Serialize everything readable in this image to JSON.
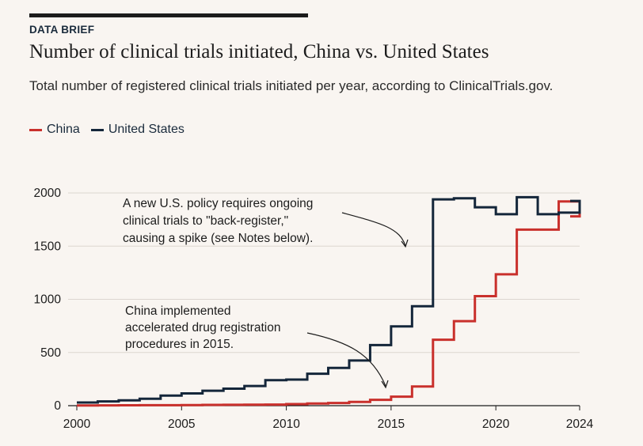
{
  "header": {
    "kicker": "DATA BRIEF",
    "title": "Number of clinical trials initiated, China vs. United States",
    "subtitle": "Total number of registered clinical trials initiated per year, according to ClinicalTrials.gov."
  },
  "colors": {
    "china": "#c9302c",
    "us": "#14263a",
    "grid": "#dcd6d0",
    "axis": "#1c1c1c"
  },
  "chart_data": {
    "type": "line",
    "step": true,
    "legend_position": "top-left",
    "grid": true,
    "xlim": [
      2000,
      2024
    ],
    "ylim": [
      0,
      2000
    ],
    "x_ticks": [
      2000,
      2005,
      2010,
      2015,
      2020,
      2024
    ],
    "y_ticks": [
      0,
      500,
      1000,
      1500,
      2000
    ],
    "x": [
      2000,
      2001,
      2002,
      2003,
      2004,
      2005,
      2006,
      2007,
      2008,
      2009,
      2010,
      2011,
      2012,
      2013,
      2014,
      2015,
      2016,
      2017,
      2018,
      2019,
      2020,
      2021,
      2022,
      2023,
      2024
    ],
    "series": [
      {
        "name": "China",
        "values": [
          2,
          3,
          4,
          5,
          5,
          6,
          7,
          8,
          9,
          10,
          15,
          20,
          25,
          35,
          55,
          85,
          180,
          620,
          795,
          1030,
          1235,
          1655,
          1655,
          1920,
          1780
        ]
      },
      {
        "name": "United States",
        "values": [
          30,
          40,
          50,
          65,
          95,
          115,
          140,
          160,
          185,
          240,
          245,
          300,
          355,
          425,
          570,
          745,
          935,
          1940,
          1950,
          1865,
          1800,
          1960,
          1800,
          1815,
          1925
        ]
      }
    ],
    "annotations": [
      {
        "lines": [
          "A new U.S. policy requires ongoing",
          "clinical trials to \"back-register,\"",
          "causing a spike (see Notes below)."
        ]
      },
      {
        "lines": [
          "China implemented",
          "accelerated drug registration",
          "procedures in 2015."
        ]
      }
    ]
  }
}
